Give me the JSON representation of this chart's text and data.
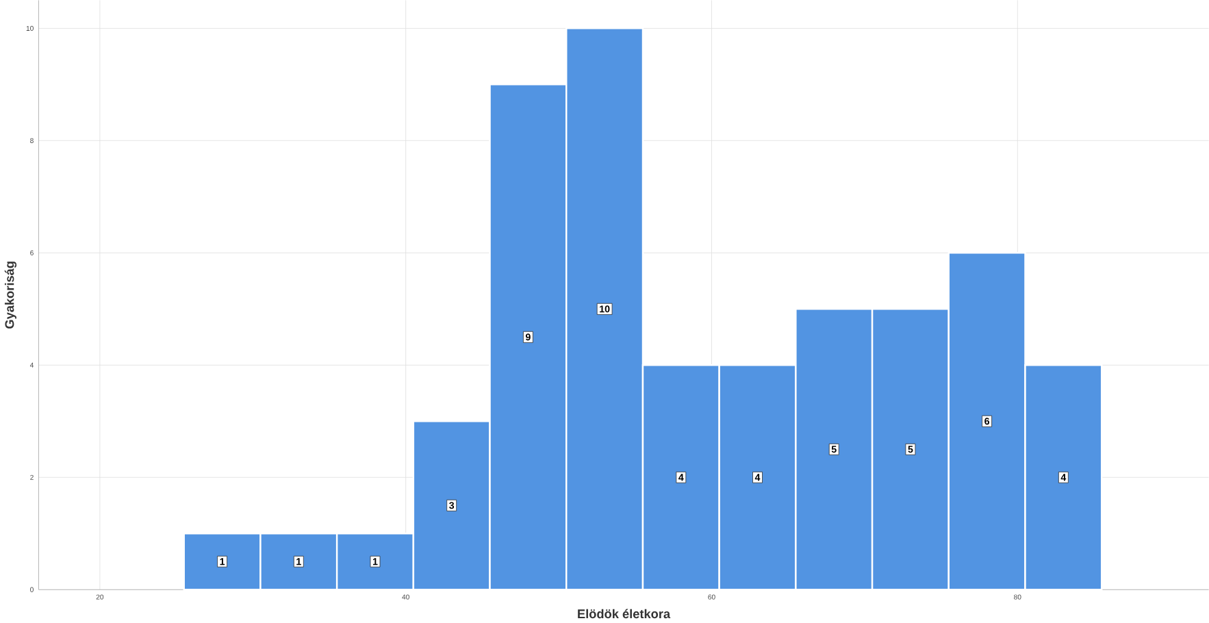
{
  "chart_data": {
    "type": "histogram",
    "xlabel": "Elödök életkora",
    "ylabel": "Gyakoriság",
    "bins": [
      25.5,
      30.5,
      35.5,
      40.5,
      45.5,
      50.5,
      55.5,
      60.5,
      65.5,
      70.5,
      75.5,
      80.5,
      85.5
    ],
    "values": [
      1,
      1,
      1,
      3,
      9,
      10,
      4,
      4,
      5,
      5,
      6,
      4
    ],
    "color": "#5294e2",
    "data_labels": true,
    "grid": true,
    "xlim": [
      16,
      92.5
    ],
    "ylim": [
      0,
      10.5
    ],
    "xticks": [
      20,
      40,
      60,
      80
    ],
    "yticks": [
      0,
      2,
      4,
      6,
      8,
      10
    ]
  }
}
